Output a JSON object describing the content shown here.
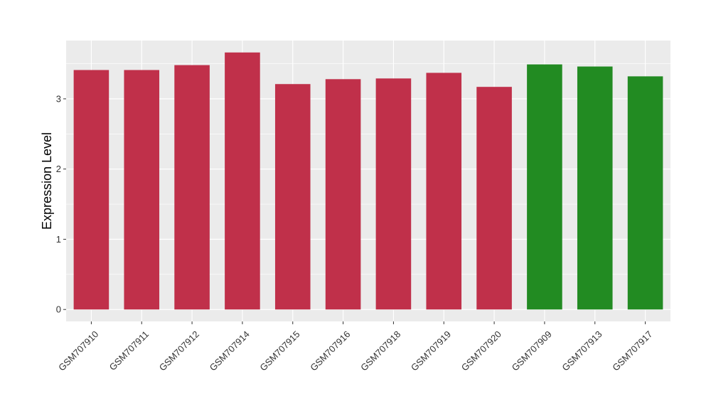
{
  "chart_data": {
    "type": "bar",
    "title": "",
    "xlabel": "",
    "ylabel": "Expression Level",
    "ylim": [
      -0.17,
      3.83
    ],
    "yticks": [
      0,
      1,
      2,
      3
    ],
    "grid": true,
    "legend": "none",
    "panel_background": "#ebebeb",
    "grid_color": "#ffffff",
    "categories": [
      "GSM707910",
      "GSM707911",
      "GSM707912",
      "GSM707914",
      "GSM707915",
      "GSM707916",
      "GSM707918",
      "GSM707919",
      "GSM707920",
      "GSM707909",
      "GSM707913",
      "GSM707917"
    ],
    "values": [
      3.41,
      3.41,
      3.48,
      3.66,
      3.21,
      3.28,
      3.29,
      3.37,
      3.17,
      3.49,
      3.46,
      3.32
    ],
    "groups": [
      "a",
      "a",
      "a",
      "a",
      "a",
      "a",
      "a",
      "a",
      "a",
      "b",
      "b",
      "b"
    ],
    "group_colors": {
      "a": "#c0304a",
      "b": "#228b22"
    }
  }
}
